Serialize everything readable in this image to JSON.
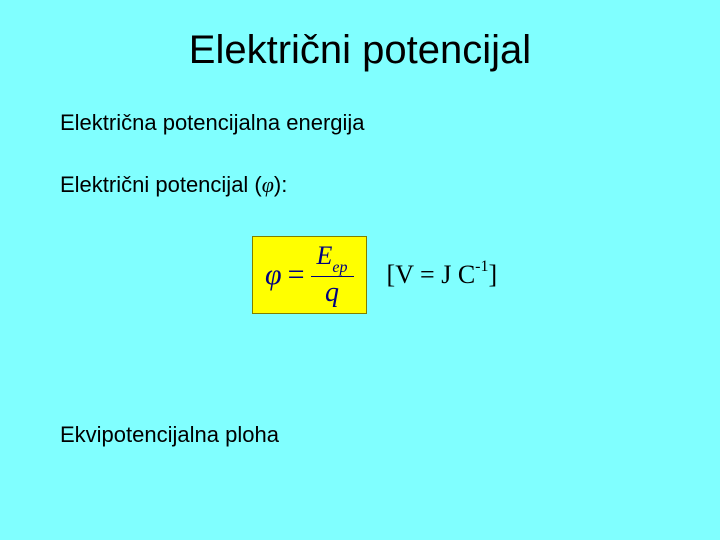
{
  "title": "Električni potencijal",
  "line1": "Električna potencijalna energija",
  "line2_prefix": "Električni potencijal (",
  "line2_phi": "φ",
  "line2_suffix": "):",
  "formula": {
    "lhs_symbol": "φ",
    "eq": "=",
    "numerator_main": "E",
    "numerator_sub": "ep",
    "denominator": "q",
    "box_bg": "#ffff00",
    "box_border": "#808000",
    "text_color": "#000080"
  },
  "unit": {
    "open": "[",
    "v": "V",
    "eq": " = ",
    "j": "J",
    "space": " ",
    "c": "C",
    "exp": "-1",
    "close": "]"
  },
  "line3": "Ekvipotencijalna ploha",
  "page_bg": "#80ffff",
  "fontsize_title": 40,
  "fontsize_body": 22,
  "fontsize_formula": 30,
  "fontsize_unit": 26
}
